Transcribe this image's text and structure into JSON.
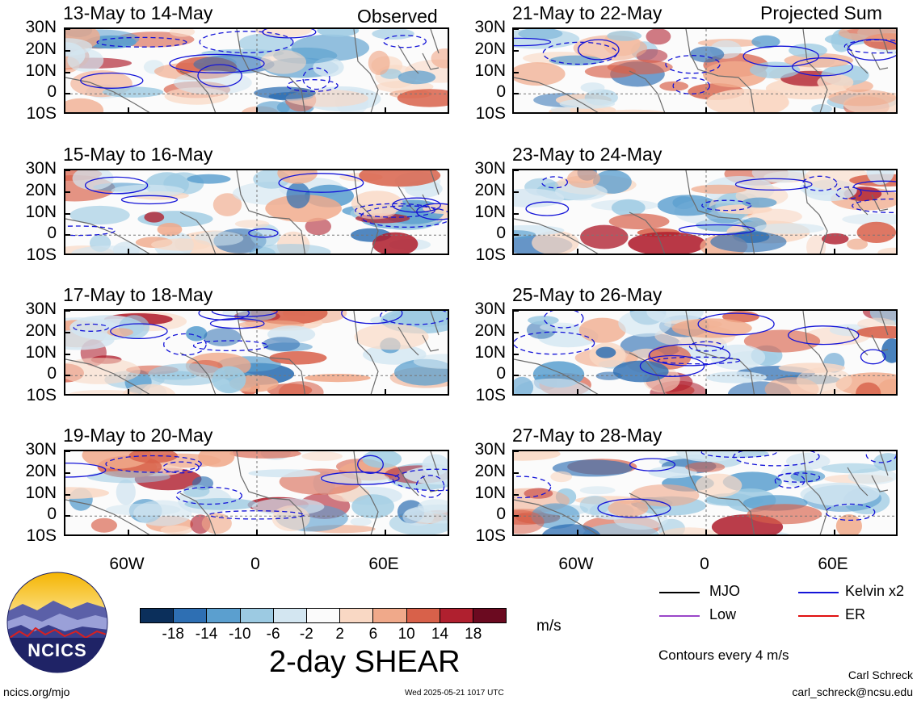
{
  "header": {
    "observed_label": "Observed",
    "projected_label": "Projected Sum"
  },
  "panels": [
    {
      "date_range": "13-May to 14-May",
      "column": "observed"
    },
    {
      "date_range": "15-May to 16-May",
      "column": "observed"
    },
    {
      "date_range": "17-May to 18-May",
      "column": "observed"
    },
    {
      "date_range": "19-May to 20-May",
      "column": "observed"
    },
    {
      "date_range": "21-May to 22-May",
      "column": "projected"
    },
    {
      "date_range": "23-May to 24-May",
      "column": "projected"
    },
    {
      "date_range": "25-May to 26-May",
      "column": "projected"
    },
    {
      "date_range": "27-May to 28-May",
      "column": "projected"
    }
  ],
  "lat_labels": [
    "30N",
    "20N",
    "10N",
    "0",
    "10S"
  ],
  "lon_labels": [
    "60W",
    "0",
    "60E"
  ],
  "colorbar": {
    "ticks": [
      "-18",
      "-14",
      "-10",
      "-6",
      "-2",
      "2",
      "6",
      "10",
      "14",
      "18"
    ],
    "colors": [
      "#0b2f5b",
      "#2e6fb3",
      "#5b9fcf",
      "#9ccae2",
      "#d3e6f1",
      "#fbfbfb",
      "#f9d8c4",
      "#f0a98a",
      "#d8614a",
      "#b0202f",
      "#6b0a20"
    ],
    "units": "m/s",
    "title": "2-day SHEAR"
  },
  "legend": {
    "items": [
      {
        "label": "MJO",
        "color": "#000000"
      },
      {
        "label": "Kelvin x2",
        "color": "#1414d8"
      },
      {
        "label": "Low",
        "color": "#9a46c8"
      },
      {
        "label": "ER",
        "color": "#e01010"
      }
    ],
    "contour_note": "Contours every 4 m/s"
  },
  "logo": {
    "text": "NCICS"
  },
  "footer": {
    "url": "ncics.org/mjo",
    "timestamp": "Wed 2025-05-21 1017 UTC",
    "author": "Carl Schreck",
    "email": "carl_schreck@ncsu.edu"
  }
}
